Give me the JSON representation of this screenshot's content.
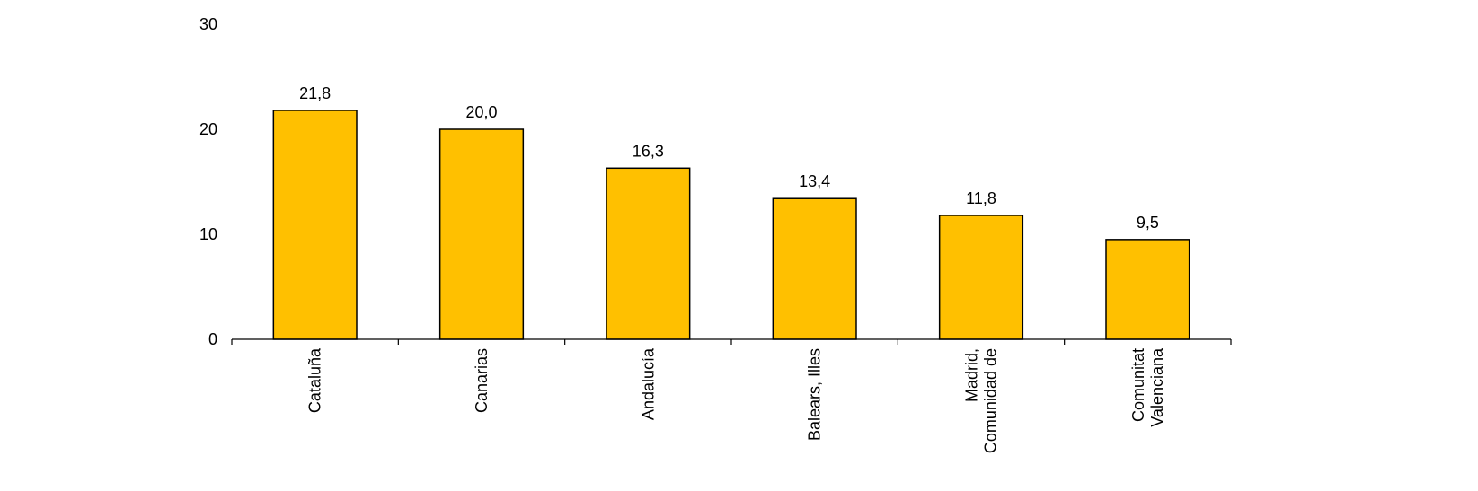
{
  "chart_data": {
    "type": "bar",
    "title": "",
    "xlabel": "",
    "ylabel": "",
    "ylim": [
      0,
      30
    ],
    "yticks": [
      0,
      10,
      20,
      30
    ],
    "grid": false,
    "bar_color": "#FFC000",
    "bar_stroke": "#000000",
    "categories": [
      [
        "Cataluña"
      ],
      [
        "Canarias"
      ],
      [
        "Andalucía"
      ],
      [
        "Balears, Illes"
      ],
      [
        "Madrid,",
        "Comunidad de"
      ],
      [
        "Comunitat",
        "Valenciana"
      ]
    ],
    "values": [
      21.8,
      20.0,
      16.3,
      13.4,
      11.8,
      9.5
    ],
    "value_labels": [
      "21,8",
      "20,0",
      "16,3",
      "13,4",
      "11,8",
      "9,5"
    ]
  }
}
